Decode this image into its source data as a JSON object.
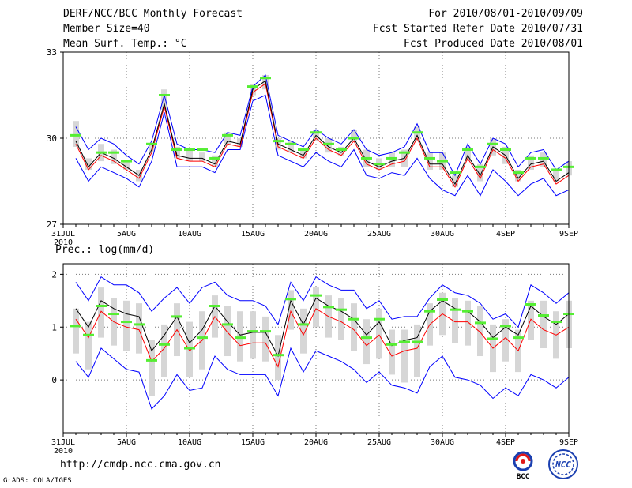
{
  "header": {
    "title": "DERF/NCC/BCC Monthly Forecast",
    "member_size": "Member Size=40",
    "variable": "Mean Surf. Temp.: °C",
    "forecast_range": "For 2010/08/01-2010/09/09",
    "start_date": "Fcst Started Refer Date 2010/07/31",
    "produced_date": "Fcst Produced Date 2010/08/01"
  },
  "footer": {
    "url": "http://cmdp.ncc.cma.gov.cn",
    "credit": "GrADS: COLA/IGES",
    "logo1_text": "BCC",
    "logo2_text": "NCC"
  },
  "colors": {
    "envelope": "#0000ff",
    "mean": "#000000",
    "median": "#ff0000",
    "marker": "#55ee33",
    "box": "#d6d6d6",
    "grid": "#777777"
  },
  "chart_data": [
    {
      "type": "line",
      "title": "",
      "ylabel": "Mean Surf. Temp.: °C",
      "ylim": [
        27,
        33
      ],
      "yticks": [
        "27",
        "30",
        "33"
      ],
      "ytick_values": [
        27,
        30,
        33
      ],
      "xticks": [
        "31JUL\n2010",
        "5AUG",
        "10AUG",
        "15AUG",
        "20AUG",
        "25AUG",
        "30AUG",
        "4SEP",
        "9SEP"
      ],
      "xtick_days": [
        0,
        5,
        10,
        15,
        20,
        25,
        30,
        35,
        40
      ],
      "x": [
        1,
        2,
        3,
        4,
        5,
        6,
        7,
        8,
        9,
        10,
        11,
        12,
        13,
        14,
        15,
        16,
        17,
        18,
        19,
        20,
        21,
        22,
        23,
        24,
        25,
        26,
        27,
        28,
        29,
        30,
        31,
        32,
        33,
        34,
        35,
        36,
        37,
        38,
        39,
        40
      ],
      "series": [
        {
          "name": "max",
          "values": [
            30.4,
            29.6,
            30.0,
            29.8,
            29.4,
            29.1,
            29.9,
            31.5,
            29.8,
            29.6,
            29.6,
            29.5,
            30.2,
            30.1,
            31.8,
            32.2,
            30.1,
            29.9,
            29.7,
            30.3,
            30.0,
            29.8,
            30.3,
            29.6,
            29.4,
            29.5,
            29.7,
            30.5,
            29.5,
            29.5,
            28.7,
            29.8,
            29.1,
            30.0,
            29.8,
            29.0,
            29.5,
            29.6,
            28.9,
            29.2
          ]
        },
        {
          "name": "mean",
          "values": [
            29.9,
            29.0,
            29.5,
            29.3,
            29.0,
            28.7,
            29.6,
            31.2,
            29.4,
            29.3,
            29.3,
            29.1,
            29.9,
            29.8,
            31.7,
            32.0,
            29.8,
            29.6,
            29.4,
            30.1,
            29.7,
            29.5,
            30.0,
            29.2,
            29.0,
            29.2,
            29.3,
            30.1,
            29.1,
            29.1,
            28.4,
            29.4,
            28.7,
            29.7,
            29.4,
            28.6,
            29.1,
            29.2,
            28.5,
            28.8
          ]
        },
        {
          "name": "median",
          "values": [
            29.8,
            28.9,
            29.4,
            29.2,
            28.9,
            28.6,
            29.5,
            31.1,
            29.3,
            29.2,
            29.2,
            29.0,
            29.8,
            29.7,
            31.6,
            31.9,
            29.7,
            29.5,
            29.3,
            30.0,
            29.6,
            29.4,
            29.9,
            29.1,
            28.9,
            29.1,
            29.2,
            30.0,
            29.0,
            29.0,
            28.3,
            29.3,
            28.6,
            29.6,
            29.3,
            28.5,
            29.0,
            29.1,
            28.4,
            28.7
          ]
        },
        {
          "name": "min",
          "values": [
            29.3,
            28.5,
            29.0,
            28.8,
            28.6,
            28.3,
            29.2,
            30.9,
            29.0,
            29.0,
            29.0,
            28.8,
            29.6,
            29.6,
            31.3,
            31.5,
            29.4,
            29.2,
            29.0,
            29.5,
            29.2,
            29.0,
            29.6,
            28.7,
            28.6,
            28.8,
            28.7,
            29.3,
            28.6,
            28.2,
            28.0,
            28.7,
            28.0,
            28.9,
            28.5,
            28.0,
            28.4,
            28.6,
            28.0,
            28.2
          ]
        },
        {
          "name": "marker",
          "values": [
            30.1,
            null,
            29.5,
            29.5,
            29.2,
            null,
            29.8,
            31.5,
            29.6,
            29.6,
            29.6,
            29.3,
            30.1,
            null,
            31.8,
            32.1,
            29.9,
            29.8,
            29.6,
            30.2,
            29.8,
            29.6,
            30.0,
            29.3,
            29.1,
            29.3,
            29.5,
            30.2,
            29.3,
            29.2,
            28.8,
            29.6,
            29.0,
            29.8,
            29.6,
            28.8,
            29.3,
            29.3,
            28.9,
            29.0
          ]
        },
        {
          "name": "box_low",
          "values": [
            29.7,
            28.9,
            29.2,
            29.1,
            28.9,
            28.5,
            29.5,
            31.0,
            29.3,
            29.2,
            29.2,
            29.0,
            29.8,
            29.7,
            31.5,
            31.7,
            29.6,
            29.5,
            29.3,
            29.9,
            29.5,
            29.4,
            29.9,
            29.0,
            28.9,
            29.0,
            29.0,
            29.9,
            28.9,
            28.9,
            28.3,
            29.2,
            28.5,
            29.4,
            29.1,
            28.5,
            28.9,
            29.0,
            28.5,
            28.7
          ]
        },
        {
          "name": "box_high",
          "values": [
            30.6,
            29.3,
            29.8,
            29.6,
            29.2,
            28.9,
            29.8,
            31.7,
            29.7,
            29.6,
            29.5,
            29.4,
            30.2,
            30.0,
            31.9,
            32.2,
            30.0,
            29.9,
            29.6,
            30.3,
            30.0,
            29.7,
            30.3,
            29.6,
            29.3,
            29.5,
            29.6,
            30.4,
            29.5,
            29.5,
            28.7,
            29.7,
            29.1,
            30.0,
            29.7,
            28.9,
            29.4,
            29.5,
            28.9,
            29.2
          ]
        }
      ]
    },
    {
      "type": "line",
      "title": "",
      "ylabel": "Prec.: log(mm/d)",
      "ylim": [
        -1,
        2.2
      ],
      "yticks": [
        "0",
        "1",
        "2"
      ],
      "ytick_values": [
        0,
        1,
        2
      ],
      "xticks": [
        "31JUL\n2010",
        "5AUG",
        "10AUG",
        "15AUG",
        "20AUG",
        "25AUG",
        "30AUG",
        "4SEP",
        "9SEP"
      ],
      "xtick_days": [
        0,
        5,
        10,
        15,
        20,
        25,
        30,
        35,
        40
      ],
      "x": [
        1,
        2,
        3,
        4,
        5,
        6,
        7,
        8,
        9,
        10,
        11,
        12,
        13,
        14,
        15,
        16,
        17,
        18,
        19,
        20,
        21,
        22,
        23,
        24,
        25,
        26,
        27,
        28,
        29,
        30,
        31,
        32,
        33,
        34,
        35,
        36,
        37,
        38,
        39,
        40
      ],
      "series": [
        {
          "name": "max",
          "values": [
            1.85,
            1.5,
            1.95,
            1.8,
            1.8,
            1.65,
            1.3,
            1.55,
            1.75,
            1.45,
            1.75,
            1.85,
            1.6,
            1.5,
            1.5,
            1.4,
            1.05,
            1.85,
            1.5,
            1.95,
            1.8,
            1.7,
            1.7,
            1.35,
            1.5,
            1.15,
            1.2,
            1.2,
            1.55,
            1.8,
            1.65,
            1.6,
            1.45,
            1.15,
            1.25,
            1.0,
            1.8,
            1.65,
            1.45,
            1.65
          ]
        },
        {
          "name": "mean",
          "values": [
            1.35,
            1.0,
            1.5,
            1.35,
            1.25,
            1.2,
            0.55,
            0.85,
            1.2,
            0.7,
            0.95,
            1.4,
            1.1,
            0.85,
            0.9,
            0.9,
            0.45,
            1.5,
            1.05,
            1.55,
            1.4,
            1.3,
            1.15,
            0.85,
            1.1,
            0.65,
            0.75,
            0.8,
            1.3,
            1.5,
            1.35,
            1.3,
            1.1,
            0.8,
            1.0,
            0.85,
            1.4,
            1.2,
            1.05,
            1.25
          ]
        },
        {
          "name": "median",
          "values": [
            1.15,
            0.8,
            1.3,
            1.1,
            1.0,
            0.95,
            0.35,
            0.6,
            0.95,
            0.55,
            0.75,
            1.2,
            0.9,
            0.65,
            0.7,
            0.7,
            0.25,
            1.3,
            0.85,
            1.35,
            1.2,
            1.1,
            0.95,
            0.65,
            0.85,
            0.45,
            0.55,
            0.6,
            1.05,
            1.25,
            1.1,
            1.1,
            0.9,
            0.6,
            0.8,
            0.55,
            1.15,
            0.95,
            0.85,
            1.0
          ]
        },
        {
          "name": "min",
          "values": [
            0.35,
            0.05,
            0.6,
            0.4,
            0.2,
            0.15,
            -0.55,
            -0.3,
            0.1,
            -0.2,
            -0.15,
            0.45,
            0.2,
            0.1,
            0.1,
            0.1,
            -0.3,
            0.6,
            0.15,
            0.55,
            0.45,
            0.35,
            0.2,
            -0.05,
            0.15,
            -0.1,
            -0.15,
            -0.25,
            0.25,
            0.45,
            0.05,
            0.0,
            -0.1,
            -0.35,
            -0.15,
            -0.3,
            0.1,
            0.0,
            -0.15,
            0.05
          ]
        },
        {
          "name": "marker",
          "values": [
            1.02,
            0.85,
            1.4,
            1.25,
            1.1,
            1.05,
            0.37,
            0.67,
            1.2,
            0.6,
            0.8,
            1.4,
            1.05,
            0.8,
            0.92,
            0.92,
            0.47,
            1.53,
            1.05,
            1.6,
            1.38,
            1.33,
            1.15,
            0.8,
            1.15,
            0.67,
            0.72,
            0.72,
            1.3,
            1.52,
            1.33,
            1.3,
            1.08,
            0.78,
            1.02,
            0.8,
            1.43,
            1.22,
            1.1,
            1.25
          ]
        },
        {
          "name": "box_low",
          "values": [
            0.5,
            0.2,
            0.8,
            0.65,
            0.55,
            0.5,
            -0.3,
            0.05,
            0.45,
            0.05,
            0.2,
            0.8,
            0.45,
            0.35,
            0.4,
            0.35,
            0.0,
            0.95,
            0.5,
            1.0,
            0.8,
            0.75,
            0.55,
            0.3,
            0.4,
            0.1,
            -0.05,
            0.05,
            0.65,
            0.85,
            0.7,
            0.65,
            0.45,
            0.15,
            0.35,
            0.15,
            0.75,
            0.6,
            0.4,
            0.6
          ]
        },
        {
          "name": "box_high",
          "values": [
            1.35,
            1.1,
            1.75,
            1.55,
            1.5,
            1.45,
            0.75,
            1.05,
            1.45,
            1.1,
            1.3,
            1.6,
            1.4,
            1.3,
            1.3,
            1.2,
            0.85,
            1.7,
            1.35,
            1.75,
            1.6,
            1.55,
            1.45,
            1.15,
            1.35,
            0.95,
            0.95,
            1.05,
            1.45,
            1.65,
            1.55,
            1.5,
            1.4,
            1.05,
            1.15,
            0.95,
            1.5,
            1.5,
            1.3,
            1.5
          ]
        }
      ]
    }
  ]
}
